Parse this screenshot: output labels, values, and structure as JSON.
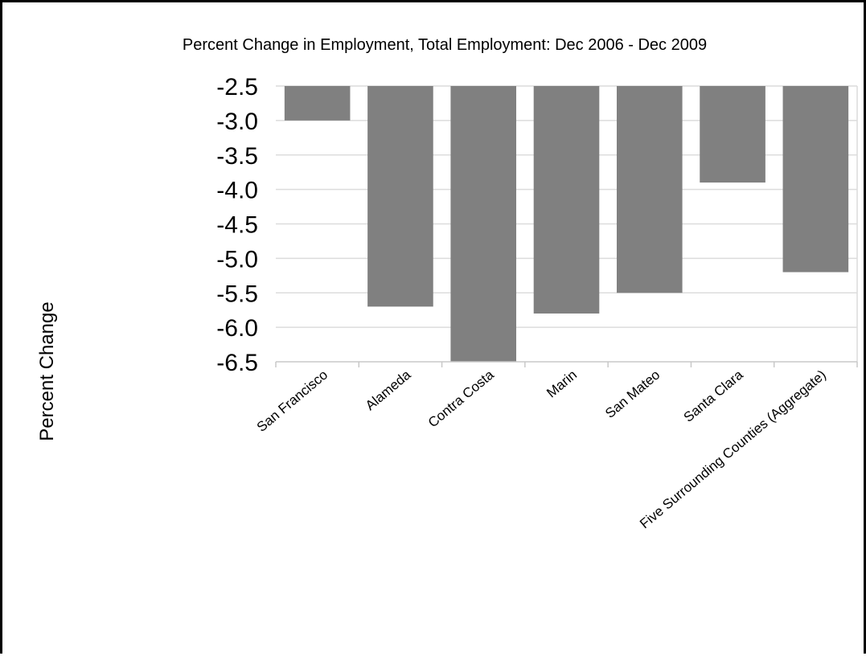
{
  "chart_data": {
    "type": "bar",
    "title": "Percent Change in Employment, Total Employment: Dec 2006 - Dec 2009",
    "xlabel": "",
    "ylabel": "Percent Change",
    "categories": [
      "San Francisco",
      "Alameda",
      "Contra Costa",
      "Marin",
      "San Mateo",
      "Santa Clara",
      "Five Surrounding Counties (Aggregate)"
    ],
    "values": [
      -3.0,
      -5.7,
      -6.5,
      -5.8,
      -5.5,
      -3.9,
      -5.2
    ],
    "ylim": [
      -6.5,
      -2.5
    ],
    "yticks": [
      "-2.5",
      "-3.0",
      "-3.5",
      "-4.0",
      "-4.5",
      "-5.0",
      "-5.5",
      "-6.0",
      "-6.5"
    ],
    "bar_color": "#808080",
    "grid": true,
    "legend": "none"
  }
}
